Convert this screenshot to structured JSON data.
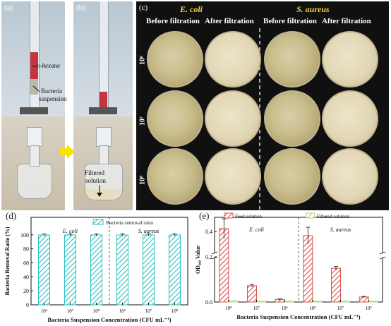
{
  "panels": {
    "a": "(a)",
    "b": "(b)",
    "c": "(c)",
    "d": "(d)",
    "e": "(e)"
  },
  "photo_a": {
    "hexane_label": "n-hexane",
    "bacteria_label_line1": "Bacteria",
    "bacteria_label_line2": "suspension"
  },
  "photo_b": {
    "filtered_label_line1": "Filtered",
    "filtered_label_line2": "solution"
  },
  "grid": {
    "species": [
      "E. coli",
      "S. aureus"
    ],
    "columns": [
      "Before filtration",
      "After filtration",
      "Before filtration",
      "After filtration"
    ],
    "rows": [
      "10⁶",
      "10⁷",
      "10⁸"
    ]
  },
  "colors": {
    "hatch_cyan": "#2bbfc0",
    "feed_red": "#d9534f",
    "filtered_green": "#b6cf7e",
    "arrow_yellow": "#f7e500"
  },
  "chart_data": [
    {
      "type": "bar",
      "panel": "d",
      "categories": [
        "10⁶",
        "10⁷",
        "10⁸",
        "10⁶",
        "10⁷",
        "10⁸"
      ],
      "groups": [
        "E. coli",
        "S. aureus"
      ],
      "series": [
        {
          "name": "Bacteria removal ratio",
          "values": [
            99.8,
            99.9,
            99.9,
            99.8,
            99.9,
            99.9
          ],
          "errors": [
            1.5,
            1.5,
            1.5,
            1.5,
            1.5,
            1.5
          ]
        }
      ],
      "ylabel": "Bacteria Removal Ratio (%)",
      "xlabel": "Bacteria Suspension Concentration (CFU mL⁻¹)",
      "ylim": [
        0,
        125
      ],
      "yticks": [
        "0",
        "20",
        "40",
        "60",
        "80",
        "100"
      ],
      "legend": "top-right"
    },
    {
      "type": "bar",
      "panel": "e",
      "categories": [
        "10⁸",
        "10⁷",
        "10⁶",
        "10⁸",
        "10⁷",
        "10⁶"
      ],
      "groups": [
        "E. coli",
        "S. aureus"
      ],
      "series": [
        {
          "name": "Feed solution",
          "values": [
            0.42,
            0.026,
            0.004,
            0.37,
            0.054,
            0.008
          ],
          "errors": [
            0.07,
            0.002,
            0.001,
            0.06,
            0.003,
            0.001
          ]
        },
        {
          "name": "Filtered solution",
          "values": [
            0.001,
            0.0,
            0.0,
            0.0,
            0.0,
            0.0
          ]
        }
      ],
      "ylabel": "OD₆₀₀ Value",
      "xlabel": "Bacteria Suspension Concentration (CFU mL⁻¹)",
      "yticks": [
        "0.0",
        "0.2",
        "0.4"
      ],
      "broken_axis": true,
      "legend": "top"
    }
  ]
}
